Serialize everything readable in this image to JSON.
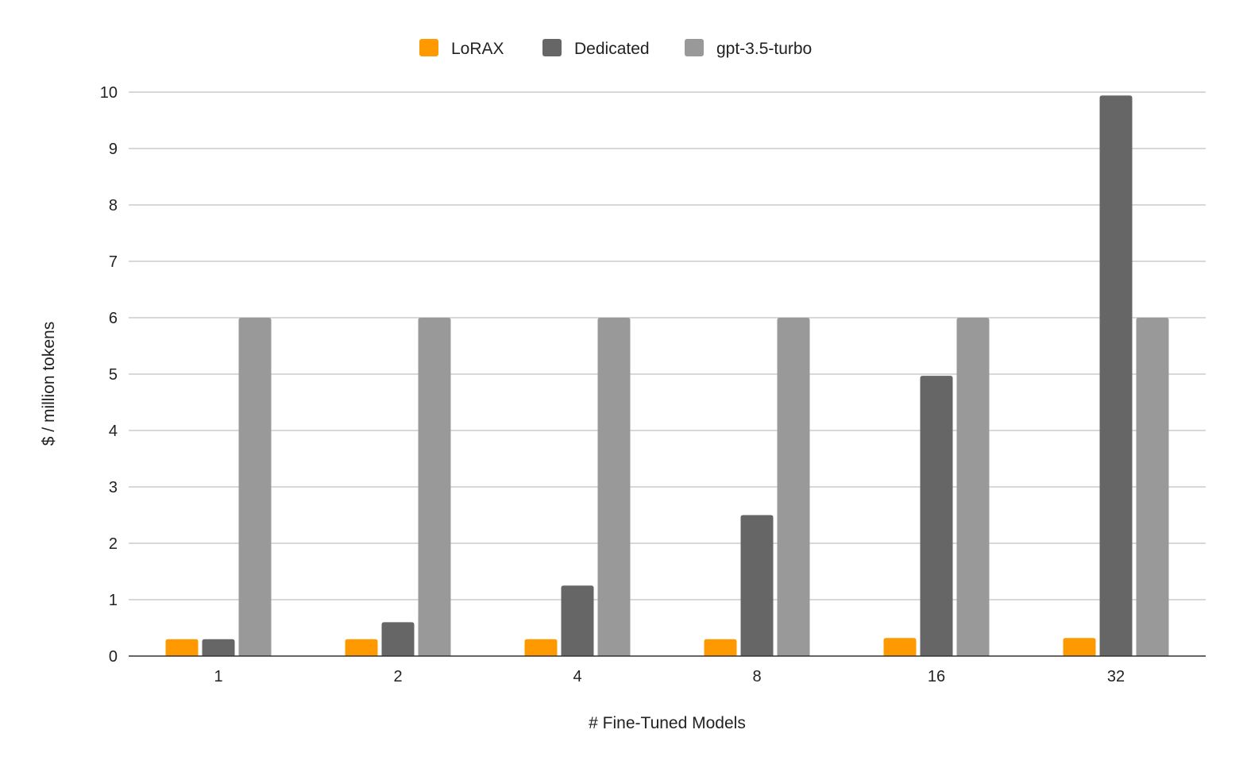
{
  "chart_data": {
    "type": "bar",
    "title": "",
    "xlabel": "# Fine-Tuned Models",
    "ylabel": "$ / million tokens",
    "categories": [
      "1",
      "2",
      "4",
      "8",
      "16",
      "32"
    ],
    "series": [
      {
        "name": "LoRAX",
        "color": "#ff9900",
        "values": [
          0.3,
          0.3,
          0.3,
          0.3,
          0.32,
          0.32
        ]
      },
      {
        "name": "Dedicated",
        "color": "#666666",
        "values": [
          0.3,
          0.6,
          1.25,
          2.5,
          4.97,
          9.94
        ]
      },
      {
        "name": "gpt-3.5-turbo",
        "color": "#999999",
        "values": [
          6,
          6,
          6,
          6,
          6,
          6
        ]
      }
    ],
    "ylim": [
      0,
      10
    ],
    "yticks": [
      "0",
      "1",
      "2",
      "3",
      "4",
      "5",
      "6",
      "7",
      "8",
      "9",
      "10"
    ],
    "grid": true,
    "legend_position": "top"
  }
}
